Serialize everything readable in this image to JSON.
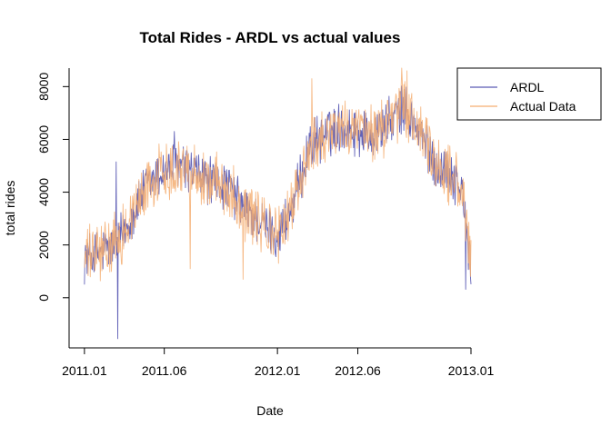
{
  "chart_data": {
    "type": "line",
    "title": "Total Rides - ARDL vs actual values",
    "xlabel": "Date",
    "ylabel": "total rides",
    "x_tick_labels": [
      "2011.01",
      "2011.06",
      "2012.01",
      "2012.06",
      "2013.01"
    ],
    "x_tick_days": [
      0,
      151,
      365,
      517,
      731
    ],
    "y_ticks": [
      0,
      2000,
      4000,
      6000,
      8000
    ],
    "xlim_days": [
      -29,
      731
    ],
    "ylim": [
      -1900,
      8700
    ],
    "grid": false,
    "legend_position": "top-right",
    "series": [
      {
        "name": "ARDL",
        "color": "#5b5bb4",
        "approx_daily_curve": {
          "day_start": 0,
          "day_end": 731,
          "knots": [
            [
              0,
              1500
            ],
            [
              30,
              1700
            ],
            [
              60,
              2000
            ],
            [
              90,
              3100
            ],
            [
              120,
              4300
            ],
            [
              150,
              4800
            ],
            [
              180,
              5000
            ],
            [
              210,
              4700
            ],
            [
              240,
              4400
            ],
            [
              270,
              4200
            ],
            [
              300,
              3400
            ],
            [
              330,
              2900
            ],
            [
              365,
              2300
            ],
            [
              395,
              3500
            ],
            [
              425,
              5700
            ],
            [
              455,
              6200
            ],
            [
              485,
              6500
            ],
            [
              515,
              6300
            ],
            [
              545,
              6200
            ],
            [
              575,
              6600
            ],
            [
              605,
              7200
            ],
            [
              635,
              6200
            ],
            [
              665,
              5000
            ],
            [
              695,
              4700
            ],
            [
              715,
              4000
            ],
            [
              725,
              2000
            ],
            [
              731,
              1000
            ]
          ],
          "noise_amplitude": 800
        },
        "spikes": [
          [
            60,
            5150
          ],
          [
            63,
            -1550
          ],
          [
            170,
            6300
          ],
          [
            721,
            320
          ]
        ]
      },
      {
        "name": "Actual Data",
        "color": "#f5ad70",
        "approx_daily_curve": {
          "day_start": 0,
          "day_end": 731,
          "knots": [
            [
              0,
              1500
            ],
            [
              30,
              1700
            ],
            [
              60,
              2000
            ],
            [
              90,
              3100
            ],
            [
              120,
              4300
            ],
            [
              150,
              4800
            ],
            [
              180,
              5000
            ],
            [
              210,
              4700
            ],
            [
              240,
              4400
            ],
            [
              270,
              4200
            ],
            [
              300,
              3400
            ],
            [
              330,
              2900
            ],
            [
              365,
              2300
            ],
            [
              395,
              3500
            ],
            [
              425,
              5700
            ],
            [
              455,
              6200
            ],
            [
              485,
              6500
            ],
            [
              515,
              6300
            ],
            [
              545,
              6200
            ],
            [
              575,
              6600
            ],
            [
              605,
              7200
            ],
            [
              635,
              6200
            ],
            [
              665,
              5000
            ],
            [
              695,
              4700
            ],
            [
              715,
              4000
            ],
            [
              725,
              2000
            ],
            [
              731,
              1000
            ]
          ],
          "noise_amplitude": 1000
        },
        "spikes": [
          [
            200,
            1100
          ],
          [
            300,
            700
          ],
          [
            430,
            8300
          ],
          [
            600,
            8700
          ],
          [
            610,
            8600
          ],
          [
            725,
            2700
          ]
        ]
      }
    ]
  }
}
